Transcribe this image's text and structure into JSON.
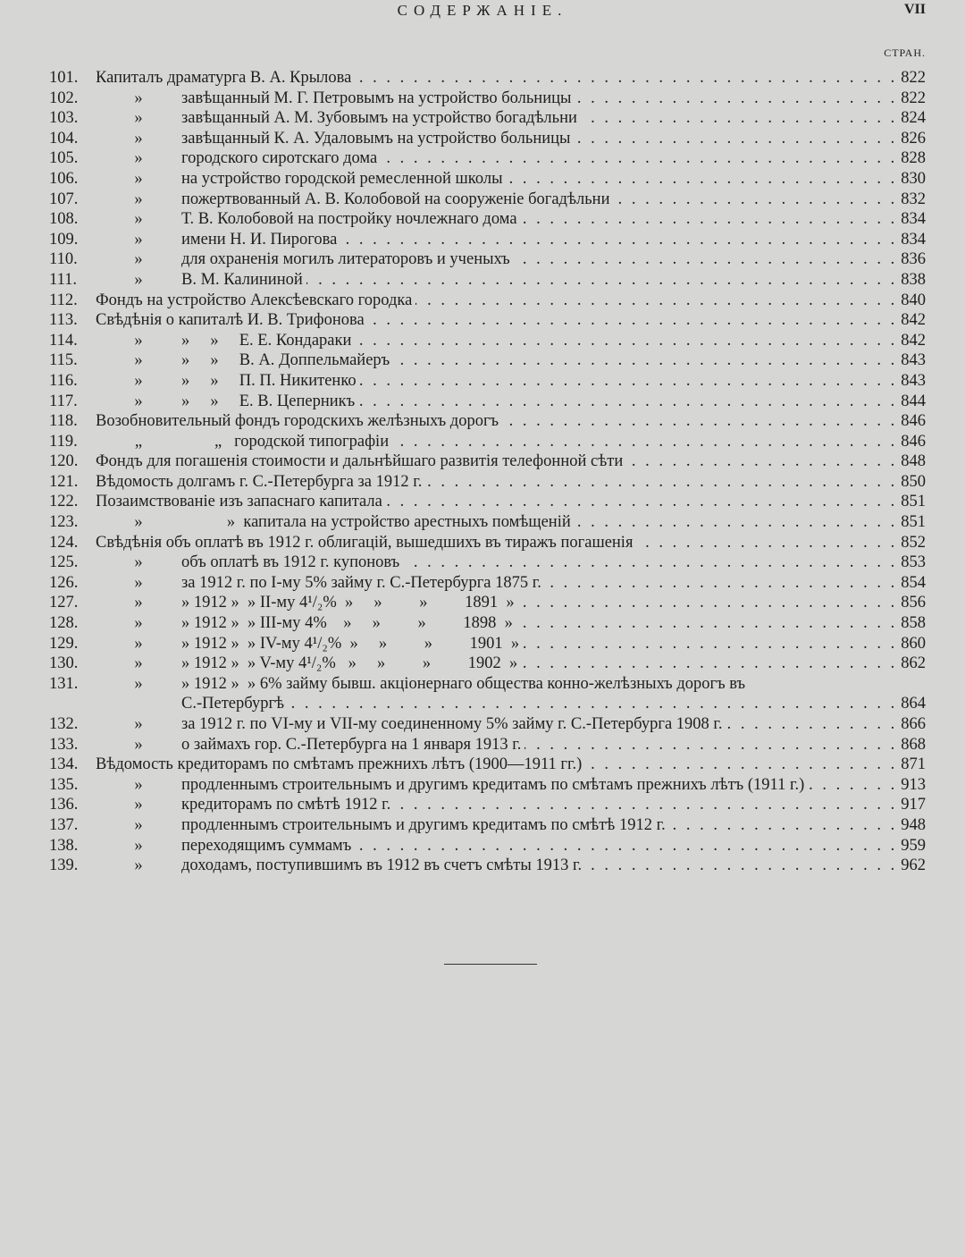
{
  "header": {
    "title": "СОДЕРЖАНІЕ.",
    "page": "VII",
    "column_label": "СТРАН."
  },
  "entries": [
    {
      "num": "101.",
      "text": "Капиталъ драматурга В. А. Крылова",
      "page": "822"
    },
    {
      "num": "102.",
      "ditto": "»",
      "text": "завѣщанный М. Г. Петровымъ на устройство больницы",
      "page": "822"
    },
    {
      "num": "103.",
      "ditto": "»",
      "text": "завѣщанный А. М. Зубовымъ на устройство богадѣльни",
      "page": "824"
    },
    {
      "num": "104.",
      "ditto": "»",
      "text": "завѣщанный К. А. Удаловымъ на устройство больницы",
      "page": "826"
    },
    {
      "num": "105.",
      "ditto": "»",
      "text": "городского сиротскаго дома",
      "page": "828"
    },
    {
      "num": "106.",
      "ditto": "»",
      "text": "на устройство городской ремесленной школы",
      "page": "830"
    },
    {
      "num": "107.",
      "ditto": "»",
      "text": "пожертвованный А. В. Колобовой на сооруженіе богадѣльни",
      "page": "832"
    },
    {
      "num": "108.",
      "ditto": "»",
      "text": "Т. В. Колобовой на постройку ночлежнаго дома",
      "page": "834"
    },
    {
      "num": "109.",
      "ditto": "»",
      "text": "имени Н. И. Пирогова",
      "page": "834"
    },
    {
      "num": "110.",
      "ditto": "»",
      "text": "для охраненія могилъ литераторовъ и ученыхъ",
      "page": "836"
    },
    {
      "num": "111.",
      "ditto": "»",
      "text": "В. М. Калининой",
      "page": "838"
    },
    {
      "num": "112.",
      "text": "Фондъ на устройство Алексѣевскаго городка",
      "page": "840"
    },
    {
      "num": "113.",
      "text": "Свѣдѣнія о капиталѣ И. В. Трифонова",
      "page": "842"
    },
    {
      "num": "114.",
      "ditto": "»",
      "text": "»     »     Е. Е. Кондараки",
      "page": "842"
    },
    {
      "num": "115.",
      "ditto": "»",
      "text": "»     »     В. А. Доппельмайеръ",
      "page": "843"
    },
    {
      "num": "116.",
      "ditto": "»",
      "text": "»     »     П. П. Никитенко",
      "page": "843"
    },
    {
      "num": "117.",
      "ditto": "»",
      "text": "»     »     Е. В. Цеперникъ",
      "page": "844"
    },
    {
      "num": "118.",
      "text": "Возобновительный фондъ городскихъ желѣзныхъ дорогъ",
      "page": "846"
    },
    {
      "num": "119.",
      "ditto": "„",
      "text": "        „   городской типографіи",
      "page": "846"
    },
    {
      "num": "120.",
      "text": "Фондъ для погашенія стоимости и дальнѣйшаго развитія телефонной сѣти",
      "page": "848"
    },
    {
      "num": "121.",
      "text": "Вѣдомость долгамъ г. С.-Петербурга за 1912 г.",
      "page": "850"
    },
    {
      "num": "122.",
      "text": "Позаимствованіе изъ запаснаго капитала",
      "page": "851"
    },
    {
      "num": "123.",
      "ditto": "»",
      "text": "           »  капитала на устройство арестныхъ помѣщеній",
      "page": "851"
    },
    {
      "num": "124.",
      "text": "Свѣдѣнія объ оплатѣ въ 1912 г. облигацій, вышедшихъ въ тиражъ погашенія",
      "page": "852"
    },
    {
      "num": "125.",
      "ditto": "»",
      "text": "объ оплатѣ въ 1912 г. купоновъ",
      "page": "853"
    },
    {
      "num": "126.",
      "ditto": "»",
      "text": "за 1912 г. по I-му 5% займу г. С.-Петербурга 1875 г.",
      "page": "854"
    },
    {
      "num": "127.",
      "ditto": "»",
      "text": "» 1912 »  » II-му 4¹/₂%  »     »         »         1891  »",
      "page": "856"
    },
    {
      "num": "128.",
      "ditto": "»",
      "text": "» 1912 »  » III-му 4%    »     »         »         1898  »",
      "page": "858"
    },
    {
      "num": "129.",
      "ditto": "»",
      "text": "» 1912 »  » IV-му 4¹/₂%  »     »         »         1901  »",
      "page": "860"
    },
    {
      "num": "130.",
      "ditto": "»",
      "text": "» 1912 »  » V-му 4¹/₂%   »     »         »         1902  »",
      "page": "862"
    },
    {
      "num": "131.",
      "ditto": "»",
      "text": "» 1912 »  » 6% займу бывш. акціонернаго общества конно-желѣзныхъ дорогъ въ",
      "continuation": "С.-Петербургѣ",
      "page": "864"
    },
    {
      "num": "132.",
      "ditto": "»",
      "text": "за 1912 г. по VI-му и VII-му соединенному 5% займу г. С.-Петербурга 1908 г.",
      "page": "866"
    },
    {
      "num": "133.",
      "ditto": "»",
      "text": "о займахъ гор. С.-Петербурга на 1 января 1913 г.",
      "page": "868"
    },
    {
      "num": "134.",
      "text": "Вѣдомость кредиторамъ по смѣтамъ прежнихъ лѣтъ (1900—1911 гг.)",
      "page": "871"
    },
    {
      "num": "135.",
      "ditto": "»",
      "text": "продленнымъ строительнымъ и другимъ кредитамъ по смѣтамъ прежнихъ лѣтъ (1911 г.)",
      "page": "913"
    },
    {
      "num": "136.",
      "ditto": "»",
      "text": "кредиторамъ по смѣтѣ 1912 г.",
      "page": "917"
    },
    {
      "num": "137.",
      "ditto": "»",
      "text": "продленнымъ строительнымъ и другимъ кредитамъ по смѣтѣ 1912 г.",
      "page": "948"
    },
    {
      "num": "138.",
      "ditto": "»",
      "text": "переходящимъ суммамъ",
      "page": "959"
    },
    {
      "num": "139.",
      "ditto": "»",
      "text": "доходамъ, поступившимъ въ 1912 въ счетъ смѣты 1913 г.",
      "page": "962"
    }
  ]
}
